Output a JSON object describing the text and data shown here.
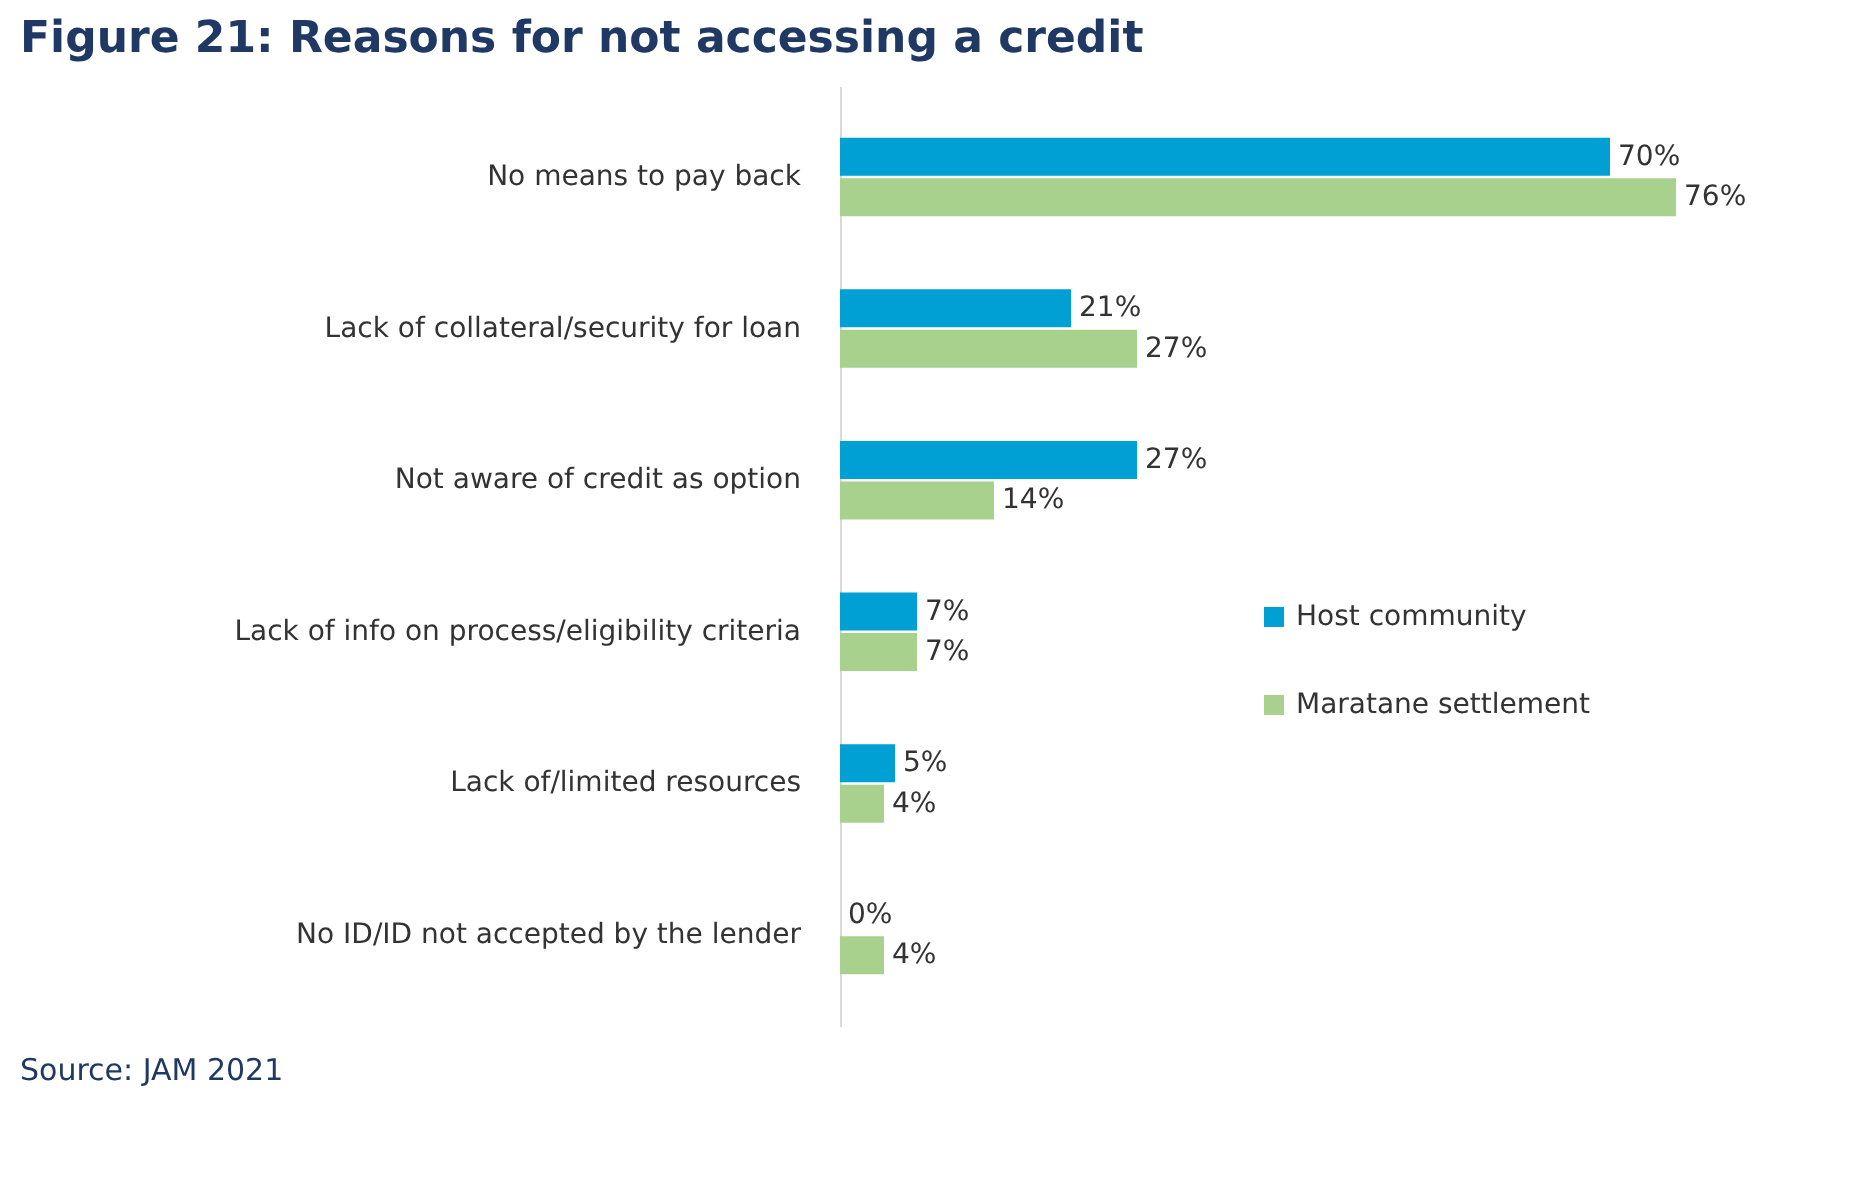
{
  "chart_data": {
    "type": "bar",
    "orientation": "horizontal",
    "title": "Figure 21: Reasons for not accessing a credit",
    "categories": [
      "No means to pay back",
      "Lack of collateral/security for loan",
      "Not aware of credit as option",
      "Lack of info on process/eligibility criteria",
      "Lack of/limited resources",
      "No ID/ID not accepted by the lender"
    ],
    "series": [
      {
        "name": "Host community",
        "color": "#009fd4",
        "values": [
          70,
          21,
          27,
          7,
          5,
          0
        ],
        "value_labels": [
          "70%",
          "21%",
          "27%",
          "7%",
          "5%",
          "0%"
        ]
      },
      {
        "name": "Maratane settlement",
        "color": "#a9d18e",
        "values": [
          76,
          27,
          14,
          7,
          4,
          4
        ],
        "value_labels": [
          "76%",
          "27%",
          "14%",
          "7%",
          "4%",
          "4%"
        ]
      }
    ],
    "legend": "right",
    "grid": false,
    "annotations": [
      "Source: JAM 2021"
    ]
  }
}
